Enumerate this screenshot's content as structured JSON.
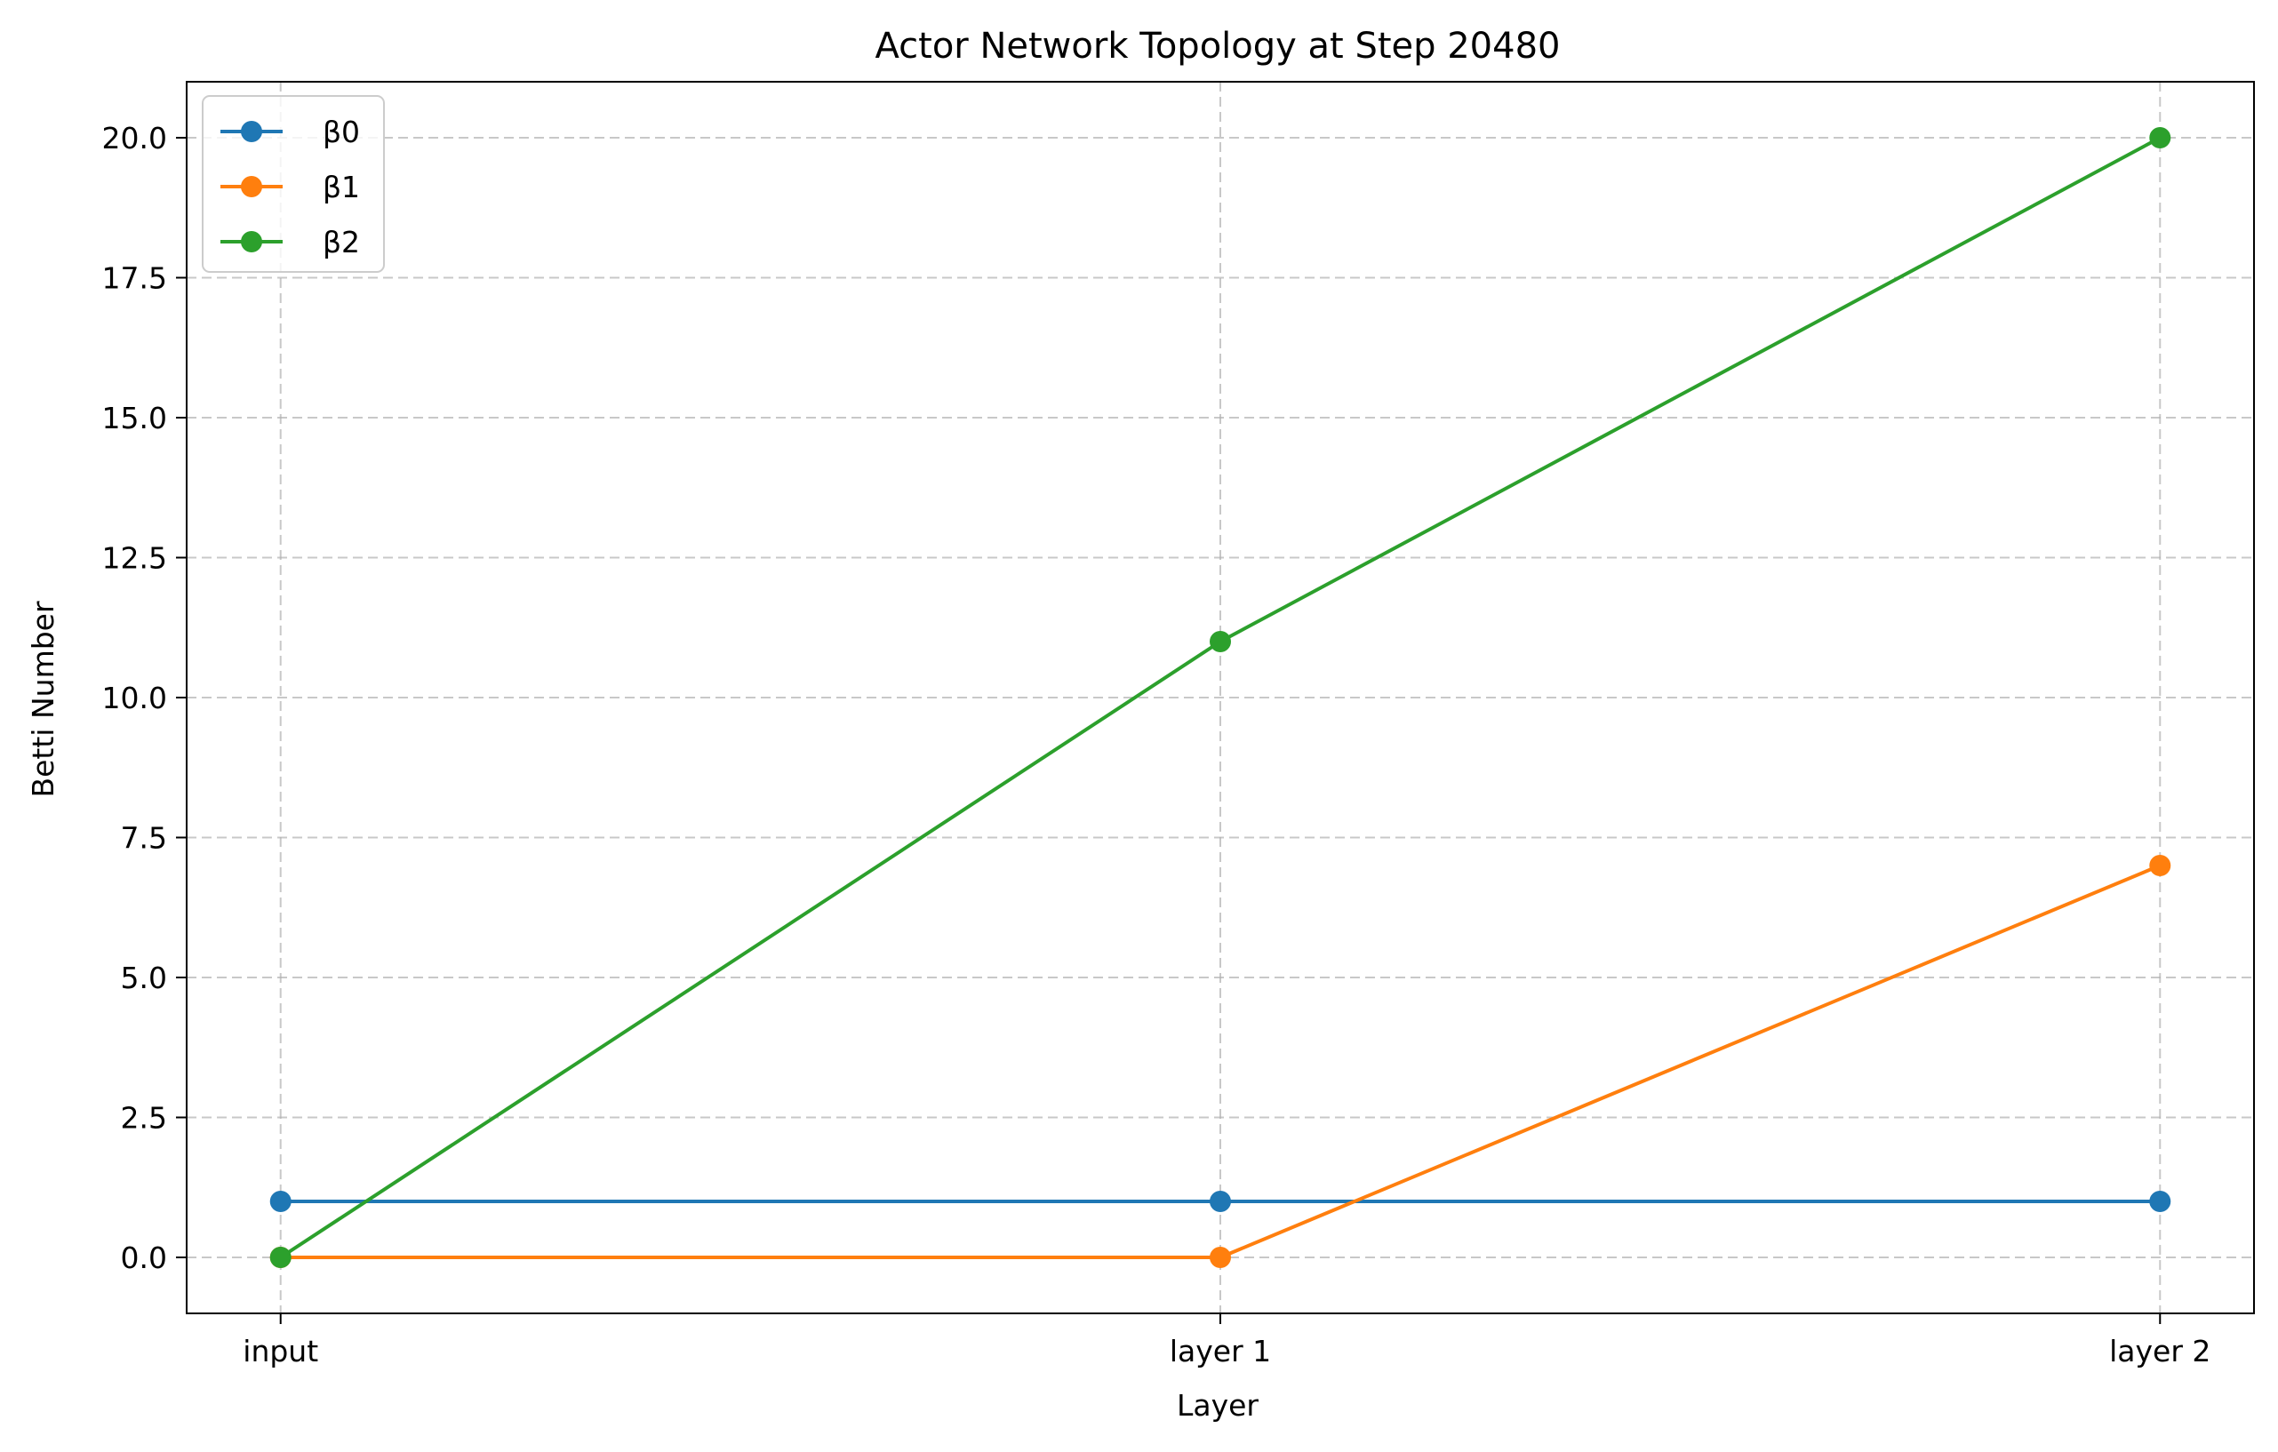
{
  "chart_data": {
    "type": "line",
    "title": "Actor Network Topology at Step 20480",
    "xlabel": "Layer",
    "ylabel": "Betti Number",
    "categories": [
      "input",
      "layer 1",
      "layer 2"
    ],
    "ylim": [
      -1,
      21
    ],
    "yticks": [
      0.0,
      2.5,
      5.0,
      7.5,
      10.0,
      12.5,
      15.0,
      17.5,
      20.0
    ],
    "ytick_labels": [
      "0.0",
      "2.5",
      "5.0",
      "7.5",
      "10.0",
      "12.5",
      "15.0",
      "17.5",
      "20.0"
    ],
    "grid": true,
    "legend_position": "top-left",
    "series": [
      {
        "name": "β0",
        "values": [
          1,
          1,
          1
        ],
        "color": "#1f77b4"
      },
      {
        "name": "β1",
        "values": [
          0,
          0,
          7
        ],
        "color": "#ff7f0e"
      },
      {
        "name": "β2",
        "values": [
          0,
          11,
          20
        ],
        "color": "#2ca02c"
      }
    ]
  }
}
